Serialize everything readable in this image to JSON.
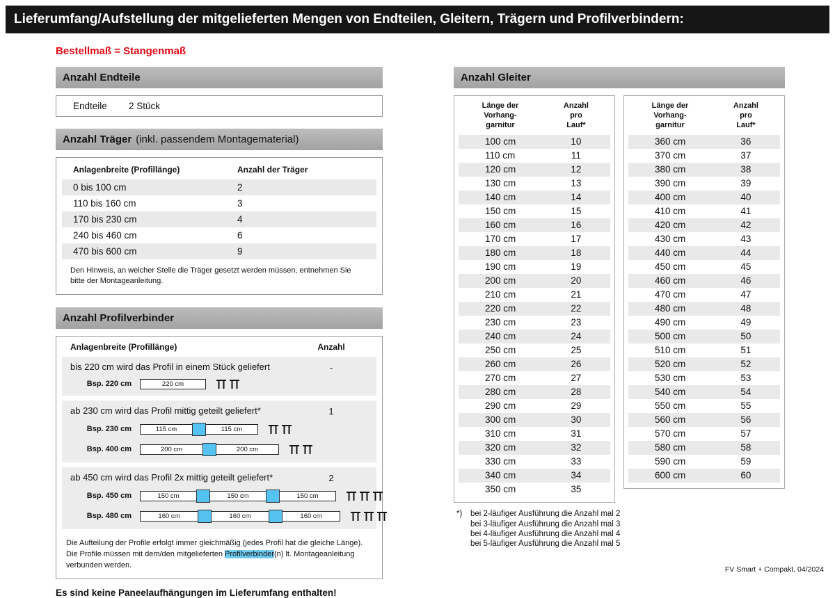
{
  "page": {
    "title": "Lieferumfang/Aufstellung der mitgelieferten Mengen von Endteilen, Gleitern, Trägern und Profilverbindern:",
    "subtitle": "Bestellmaß = Stangenmaß",
    "footer": "FV Smart + Compakt, 04/2024"
  },
  "endteile": {
    "header": "Anzahl Endteile",
    "label": "Endteile",
    "value": "2 Stück"
  },
  "traeger": {
    "header": "Anzahl Träger",
    "header_suffix": "(inkl. passendem Montagematerial)",
    "col1": "Anlagenbreite (Profillänge)",
    "col2": "Anzahl der Träger",
    "rows": [
      {
        "range": "0 bis 100 cm",
        "count": "2"
      },
      {
        "range": "110 bis 160 cm",
        "count": "3"
      },
      {
        "range": "170 bis 230 cm",
        "count": "4"
      },
      {
        "range": "240 bis 460 cm",
        "count": "6"
      },
      {
        "range": "470 bis 600 cm",
        "count": "9"
      }
    ],
    "note": "Den Hinweis, an welcher Stelle die Träger gesetzt werden müssen, entnehmen Sie bitte der Montageanleitung."
  },
  "profilverbinder": {
    "header": "Anzahl Profilverbinder",
    "col1": "Anlagenbreite (Profillänge)",
    "col2": "Anzahl",
    "sections": [
      {
        "text": "bis 220 cm wird das Profil in einem Stück geliefert",
        "count": "-",
        "examples": [
          {
            "label": "Bsp. 220 cm",
            "segments": [
              "220 cm"
            ],
            "brackets": 2
          }
        ]
      },
      {
        "text": "ab 230 cm wird das Profil mittig geteilt geliefert*",
        "count": "1",
        "examples": [
          {
            "label": "Bsp. 230 cm",
            "segments": [
              "115 cm",
              "115 cm"
            ],
            "brackets": 2
          },
          {
            "label": "Bsp. 400 cm",
            "segments": [
              "200 cm",
              "200 cm"
            ],
            "brackets": 2
          }
        ]
      },
      {
        "text": "ab 450 cm wird das Profil 2x mittig geteilt geliefert*",
        "count": "2",
        "examples": [
          {
            "label": "Bsp. 450 cm",
            "segments": [
              "150 cm",
              "150 cm",
              "150 cm"
            ],
            "brackets": 3
          },
          {
            "label": "Bsp. 480 cm",
            "segments": [
              "160 cm",
              "160 cm",
              "160 cm"
            ],
            "brackets": 3
          }
        ]
      }
    ],
    "note_part1": "Die Aufteilung der Profile erfolgt immer gleichmäßig (jedes Profil hat die gleiche Länge). Die Profile müssen mit dem/den mitgelieferten ",
    "note_highlight": "Profilverbinder",
    "note_part2": "(n) lt. Montageanleitung verbunden werden."
  },
  "paneel_note": "Es sind keine Paneelaufhängungen im Lieferumfang enthalten!",
  "gleiter": {
    "header": "Anzahl Gleiter",
    "col1": "Länge der\nVorhang-\ngarnitur",
    "col2": "Anzahl\npro\nLauf*",
    "table1": [
      [
        "100 cm",
        "10"
      ],
      [
        "110 cm",
        "11"
      ],
      [
        "120 cm",
        "12"
      ],
      [
        "130 cm",
        "13"
      ],
      [
        "140 cm",
        "14"
      ],
      [
        "150 cm",
        "15"
      ],
      [
        "160 cm",
        "16"
      ],
      [
        "170 cm",
        "17"
      ],
      [
        "180 cm",
        "18"
      ],
      [
        "190 cm",
        "19"
      ],
      [
        "200 cm",
        "20"
      ],
      [
        "210 cm",
        "21"
      ],
      [
        "220 cm",
        "22"
      ],
      [
        "230 cm",
        "23"
      ],
      [
        "240 cm",
        "24"
      ],
      [
        "250 cm",
        "25"
      ],
      [
        "260 cm",
        "26"
      ],
      [
        "270 cm",
        "27"
      ],
      [
        "280 cm",
        "28"
      ],
      [
        "290 cm",
        "29"
      ],
      [
        "300 cm",
        "30"
      ],
      [
        "310 cm",
        "31"
      ],
      [
        "320 cm",
        "32"
      ],
      [
        "330 cm",
        "33"
      ],
      [
        "340 cm",
        "34"
      ],
      [
        "350 cm",
        "35"
      ]
    ],
    "table2": [
      [
        "360 cm",
        "36"
      ],
      [
        "370 cm",
        "37"
      ],
      [
        "380 cm",
        "38"
      ],
      [
        "390 cm",
        "39"
      ],
      [
        "400 cm",
        "40"
      ],
      [
        "410 cm",
        "41"
      ],
      [
        "420 cm",
        "42"
      ],
      [
        "430 cm",
        "43"
      ],
      [
        "440 cm",
        "44"
      ],
      [
        "450 cm",
        "45"
      ],
      [
        "460 cm",
        "46"
      ],
      [
        "470 cm",
        "47"
      ],
      [
        "480 cm",
        "48"
      ],
      [
        "490 cm",
        "49"
      ],
      [
        "500 cm",
        "50"
      ],
      [
        "510 cm",
        "51"
      ],
      [
        "520 cm",
        "52"
      ],
      [
        "530 cm",
        "53"
      ],
      [
        "540 cm",
        "54"
      ],
      [
        "550 cm",
        "55"
      ],
      [
        "560 cm",
        "56"
      ],
      [
        "570 cm",
        "57"
      ],
      [
        "580 cm",
        "58"
      ],
      [
        "590 cm",
        "59"
      ],
      [
        "600 cm",
        "60"
      ]
    ],
    "footnotes": [
      {
        "marker": "*)",
        "text": "bei 2-läufiger Ausführung die Anzahl mal 2"
      },
      {
        "marker": "",
        "text": "bei 3-läufiger Ausführung die Anzahl mal 3"
      },
      {
        "marker": "",
        "text": "bei 4-läufiger Ausführung die Anzahl mal 4"
      },
      {
        "marker": "",
        "text": "bei 5-läufiger Ausführung die Anzahl mal 5"
      }
    ]
  },
  "colors": {
    "accent_red": "#e30613",
    "connector_blue": "#54c3f1",
    "zebra_gray": "#e9e9e9",
    "header_gray": "#adadad"
  }
}
